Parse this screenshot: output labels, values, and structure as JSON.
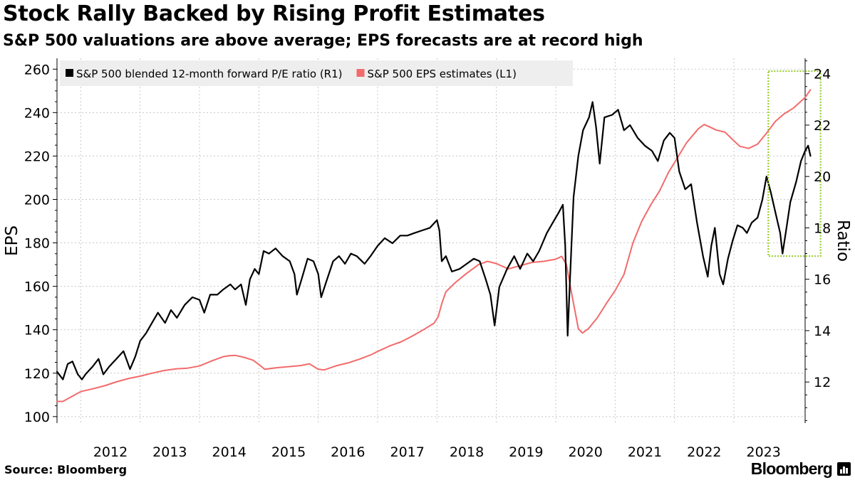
{
  "header": {
    "title": "Stock Rally Backed by Rising Profit Estimates",
    "subtitle": "S&P 500 valuations are above average; EPS forecasts are at record high"
  },
  "footer": {
    "source": "Source: Bloomberg",
    "brand": "Bloomberg"
  },
  "colors": {
    "pe_line": "#000000",
    "eps_line": "#f26b6b",
    "highlight_box": "#99cc33",
    "grid": "#c8c8c8",
    "legend_bg": "#eeeeee"
  },
  "chart_data": {
    "type": "line",
    "title": "Stock Rally Backed by Rising Profit Estimates",
    "subtitle": "S&P 500 valuations are above average; EPS forecasts are at record high",
    "x_axis": {
      "range": [
        2011.6,
        2024.2
      ],
      "tick_labels": [
        "2012",
        "2013",
        "2014",
        "2015",
        "2016",
        "2017",
        "2018",
        "2019",
        "2020",
        "2021",
        "2022",
        "2023"
      ],
      "gridlines": "vertical dashed"
    },
    "left_axis": {
      "label": "EPS",
      "range": [
        97,
        265
      ],
      "ticks": [
        100,
        120,
        140,
        160,
        180,
        200,
        220,
        240,
        260
      ]
    },
    "right_axis": {
      "label": "Ratio",
      "range": [
        10.4,
        24.6
      ],
      "ticks": [
        12,
        14,
        16,
        18,
        20,
        22,
        24
      ]
    },
    "legend_position": "top-left",
    "series": [
      {
        "name": "S&P 500 blended 12-month forward P/E ratio (R1)",
        "axis": "right",
        "color": "#000000",
        "points": [
          [
            2011.6,
            12.4
          ],
          [
            2011.7,
            12.1
          ],
          [
            2011.78,
            12.7
          ],
          [
            2011.86,
            12.8
          ],
          [
            2011.95,
            12.3
          ],
          [
            2012.02,
            12.1
          ],
          [
            2012.08,
            12.3
          ],
          [
            2012.2,
            12.6
          ],
          [
            2012.3,
            12.9
          ],
          [
            2012.38,
            12.3
          ],
          [
            2012.48,
            12.6
          ],
          [
            2012.6,
            12.9
          ],
          [
            2012.72,
            13.2
          ],
          [
            2012.83,
            12.5
          ],
          [
            2012.92,
            13.0
          ],
          [
            2013.0,
            13.6
          ],
          [
            2013.1,
            13.9
          ],
          [
            2013.2,
            14.3
          ],
          [
            2013.3,
            14.7
          ],
          [
            2013.42,
            14.3
          ],
          [
            2013.52,
            14.8
          ],
          [
            2013.62,
            14.5
          ],
          [
            2013.75,
            15.0
          ],
          [
            2013.88,
            15.3
          ],
          [
            2014.0,
            15.2
          ],
          [
            2014.08,
            14.7
          ],
          [
            2014.18,
            15.4
          ],
          [
            2014.3,
            15.4
          ],
          [
            2014.4,
            15.6
          ],
          [
            2014.52,
            15.8
          ],
          [
            2014.6,
            15.6
          ],
          [
            2014.7,
            15.8
          ],
          [
            2014.78,
            15.0
          ],
          [
            2014.85,
            16.0
          ],
          [
            2014.93,
            16.4
          ],
          [
            2015.0,
            16.2
          ],
          [
            2015.08,
            17.1
          ],
          [
            2015.17,
            17.0
          ],
          [
            2015.28,
            17.2
          ],
          [
            2015.4,
            16.9
          ],
          [
            2015.52,
            16.7
          ],
          [
            2015.6,
            16.2
          ],
          [
            2015.64,
            15.4
          ],
          [
            2015.72,
            16.0
          ],
          [
            2015.82,
            16.8
          ],
          [
            2015.92,
            16.7
          ],
          [
            2016.0,
            16.2
          ],
          [
            2016.05,
            15.3
          ],
          [
            2016.12,
            15.8
          ],
          [
            2016.25,
            16.7
          ],
          [
            2016.35,
            16.9
          ],
          [
            2016.45,
            16.6
          ],
          [
            2016.55,
            17.0
          ],
          [
            2016.65,
            16.9
          ],
          [
            2016.78,
            16.6
          ],
          [
            2016.88,
            16.9
          ],
          [
            2017.0,
            17.3
          ],
          [
            2017.12,
            17.6
          ],
          [
            2017.25,
            17.4
          ],
          [
            2017.38,
            17.7
          ],
          [
            2017.5,
            17.7
          ],
          [
            2017.62,
            17.8
          ],
          [
            2017.75,
            17.9
          ],
          [
            2017.88,
            18.0
          ],
          [
            2018.0,
            18.3
          ],
          [
            2018.04,
            17.9
          ],
          [
            2018.08,
            16.7
          ],
          [
            2018.15,
            16.9
          ],
          [
            2018.25,
            16.3
          ],
          [
            2018.38,
            16.4
          ],
          [
            2018.5,
            16.6
          ],
          [
            2018.62,
            16.8
          ],
          [
            2018.72,
            16.7
          ],
          [
            2018.82,
            16.0
          ],
          [
            2018.9,
            15.4
          ],
          [
            2018.97,
            14.2
          ],
          [
            2019.05,
            15.7
          ],
          [
            2019.18,
            16.4
          ],
          [
            2019.3,
            16.9
          ],
          [
            2019.4,
            16.4
          ],
          [
            2019.52,
            17.0
          ],
          [
            2019.62,
            16.7
          ],
          [
            2019.72,
            17.1
          ],
          [
            2019.85,
            17.8
          ],
          [
            2019.95,
            18.2
          ],
          [
            2020.05,
            18.6
          ],
          [
            2020.12,
            18.9
          ],
          [
            2020.16,
            17.3
          ],
          [
            2020.2,
            13.8
          ],
          [
            2020.24,
            16.0
          ],
          [
            2020.3,
            19.2
          ],
          [
            2020.38,
            20.8
          ],
          [
            2020.46,
            21.8
          ],
          [
            2020.56,
            22.3
          ],
          [
            2020.62,
            22.9
          ],
          [
            2020.68,
            21.9
          ],
          [
            2020.74,
            20.5
          ],
          [
            2020.82,
            22.3
          ],
          [
            2020.95,
            22.4
          ],
          [
            2021.05,
            22.6
          ],
          [
            2021.15,
            21.8
          ],
          [
            2021.25,
            22.0
          ],
          [
            2021.38,
            21.5
          ],
          [
            2021.5,
            21.2
          ],
          [
            2021.62,
            21.0
          ],
          [
            2021.72,
            20.6
          ],
          [
            2021.82,
            21.4
          ],
          [
            2021.92,
            21.7
          ],
          [
            2022.0,
            21.5
          ],
          [
            2022.08,
            20.2
          ],
          [
            2022.18,
            19.5
          ],
          [
            2022.28,
            19.7
          ],
          [
            2022.38,
            18.2
          ],
          [
            2022.48,
            16.9
          ],
          [
            2022.56,
            16.1
          ],
          [
            2022.62,
            17.3
          ],
          [
            2022.68,
            18.0
          ],
          [
            2022.76,
            16.2
          ],
          [
            2022.82,
            15.8
          ],
          [
            2022.9,
            16.8
          ],
          [
            2022.98,
            17.5
          ],
          [
            2023.06,
            18.1
          ],
          [
            2023.15,
            18.0
          ],
          [
            2023.22,
            17.8
          ],
          [
            2023.3,
            18.2
          ],
          [
            2023.4,
            18.4
          ],
          [
            2023.48,
            19.1
          ],
          [
            2023.55,
            20.0
          ],
          [
            2023.62,
            19.4
          ],
          [
            2023.7,
            18.6
          ],
          [
            2023.78,
            17.8
          ],
          [
            2023.82,
            17.0
          ],
          [
            2023.88,
            17.9
          ],
          [
            2023.95,
            19.0
          ],
          [
            2024.05,
            19.8
          ],
          [
            2024.13,
            20.6
          ],
          [
            2024.2,
            21.0
          ],
          [
            2024.25,
            21.2
          ],
          [
            2024.29,
            20.8
          ]
        ]
      },
      {
        "name": "S&P 500 EPS estimates (L1)",
        "axis": "left",
        "color": "#f26b6b",
        "points": [
          [
            2011.6,
            107.0
          ],
          [
            2011.7,
            107.0
          ],
          [
            2011.8,
            108.5
          ],
          [
            2011.9,
            110.0
          ],
          [
            2012.0,
            111.5
          ],
          [
            2012.2,
            112.8
          ],
          [
            2012.4,
            114.2
          ],
          [
            2012.6,
            116.0
          ],
          [
            2012.8,
            117.5
          ],
          [
            2013.0,
            118.6
          ],
          [
            2013.2,
            120.0
          ],
          [
            2013.4,
            121.2
          ],
          [
            2013.6,
            122.0
          ],
          [
            2013.8,
            122.3
          ],
          [
            2014.0,
            123.3
          ],
          [
            2014.2,
            125.6
          ],
          [
            2014.4,
            127.6
          ],
          [
            2014.5,
            128.0
          ],
          [
            2014.6,
            128.2
          ],
          [
            2014.75,
            127.3
          ],
          [
            2014.9,
            126.0
          ],
          [
            2015.0,
            124.0
          ],
          [
            2015.1,
            121.8
          ],
          [
            2015.3,
            122.5
          ],
          [
            2015.5,
            123.0
          ],
          [
            2015.7,
            123.5
          ],
          [
            2015.85,
            124.3
          ],
          [
            2016.0,
            121.8
          ],
          [
            2016.1,
            121.5
          ],
          [
            2016.3,
            123.4
          ],
          [
            2016.5,
            124.7
          ],
          [
            2016.7,
            126.5
          ],
          [
            2016.9,
            128.6
          ],
          [
            2017.0,
            130.0
          ],
          [
            2017.2,
            132.5
          ],
          [
            2017.4,
            134.5
          ],
          [
            2017.6,
            137.3
          ],
          [
            2017.8,
            140.5
          ],
          [
            2017.95,
            143.0
          ],
          [
            2018.02,
            146.0
          ],
          [
            2018.08,
            152.0
          ],
          [
            2018.15,
            157.5
          ],
          [
            2018.3,
            161.5
          ],
          [
            2018.5,
            166.0
          ],
          [
            2018.7,
            170.0
          ],
          [
            2018.85,
            171.5
          ],
          [
            2019.0,
            170.5
          ],
          [
            2019.2,
            168.0
          ],
          [
            2019.4,
            169.5
          ],
          [
            2019.6,
            171.0
          ],
          [
            2019.8,
            171.5
          ],
          [
            2020.0,
            172.5
          ],
          [
            2020.1,
            173.8
          ],
          [
            2020.18,
            170.0
          ],
          [
            2020.28,
            155.0
          ],
          [
            2020.38,
            140.5
          ],
          [
            2020.45,
            138.5
          ],
          [
            2020.55,
            140.5
          ],
          [
            2020.7,
            145.5
          ],
          [
            2020.85,
            152.0
          ],
          [
            2021.0,
            158.0
          ],
          [
            2021.15,
            165.5
          ],
          [
            2021.3,
            180.0
          ],
          [
            2021.45,
            190.0
          ],
          [
            2021.6,
            197.5
          ],
          [
            2021.75,
            204.0
          ],
          [
            2021.9,
            212.5
          ],
          [
            2022.0,
            217.0
          ],
          [
            2022.2,
            226.0
          ],
          [
            2022.4,
            232.5
          ],
          [
            2022.5,
            234.5
          ],
          [
            2022.6,
            233.3
          ],
          [
            2022.7,
            232.0
          ],
          [
            2022.85,
            231.0
          ],
          [
            2023.0,
            227.0
          ],
          [
            2023.1,
            224.5
          ],
          [
            2023.25,
            223.5
          ],
          [
            2023.4,
            225.5
          ],
          [
            2023.55,
            230.5
          ],
          [
            2023.7,
            236.0
          ],
          [
            2023.85,
            239.5
          ],
          [
            2024.0,
            242.0
          ],
          [
            2024.1,
            244.5
          ],
          [
            2024.2,
            247.0
          ],
          [
            2024.29,
            250.5
          ]
        ]
      }
    ],
    "annotations": [
      {
        "type": "highlight_box",
        "style": "dotted",
        "x_range": [
          2023.58,
          2024.46
        ],
        "right_axis_range": [
          16.9,
          24.1
        ]
      }
    ]
  }
}
